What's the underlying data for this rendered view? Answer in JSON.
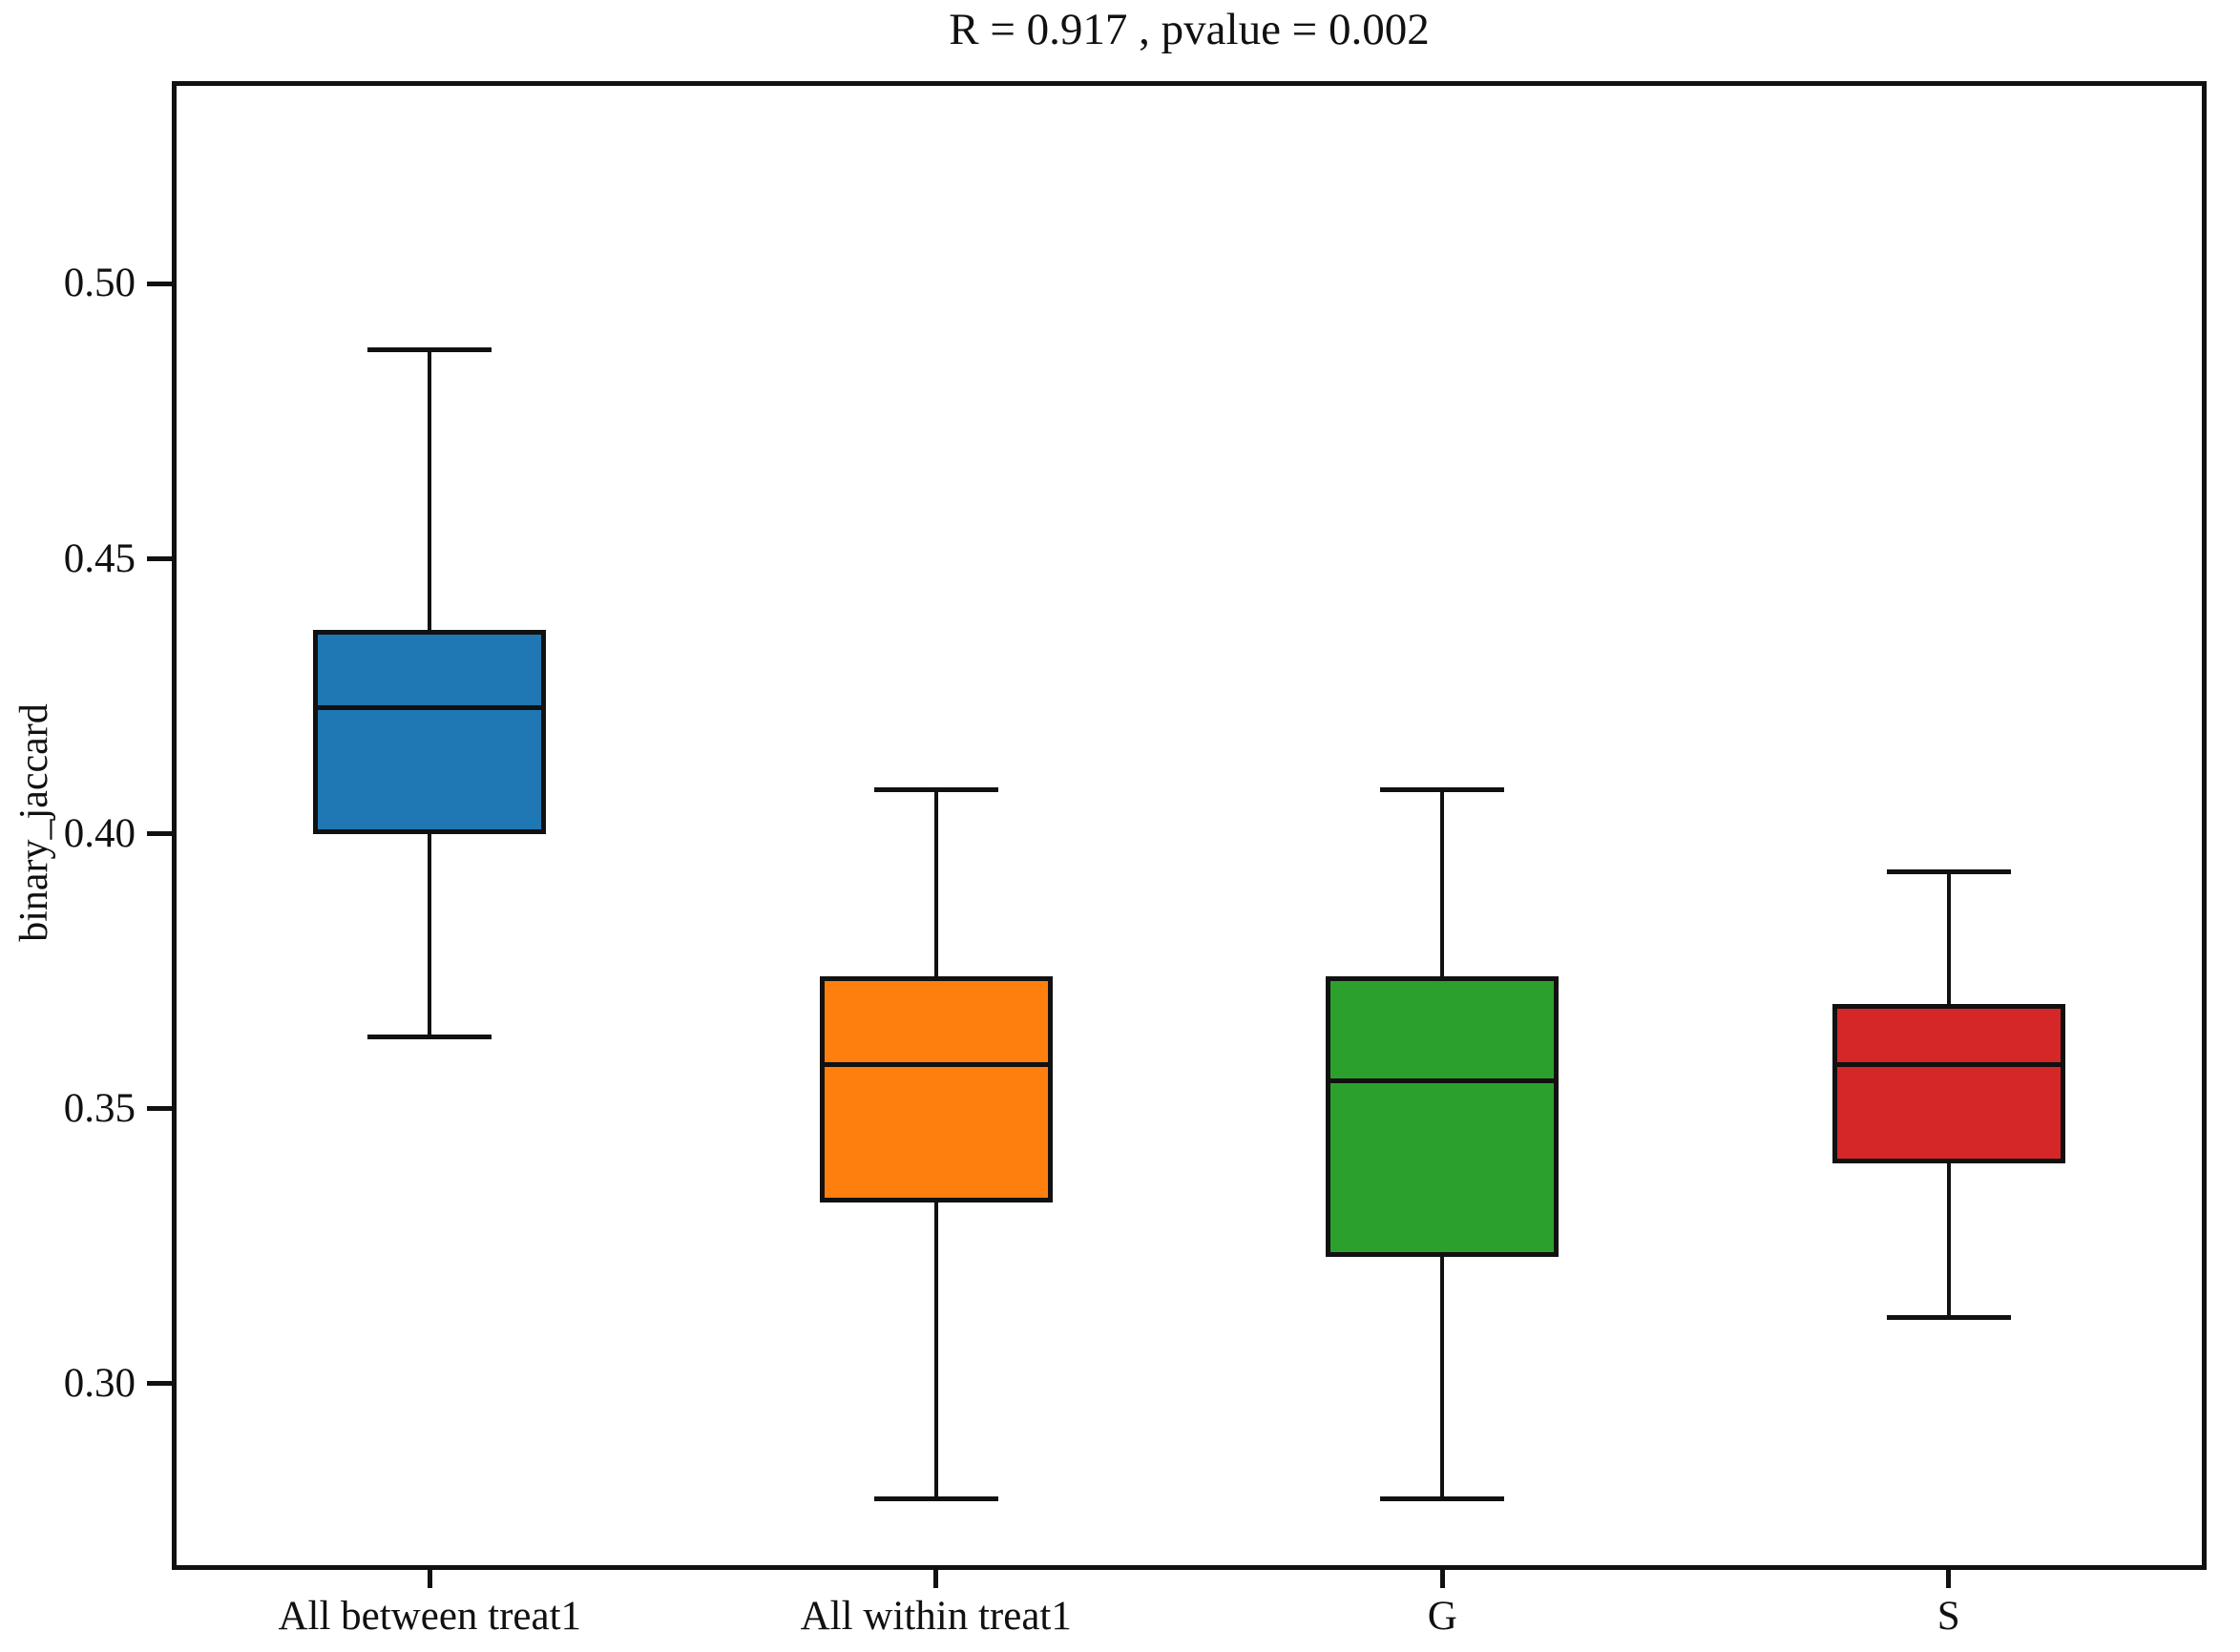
{
  "figure": {
    "title": "R = 0.917 , pvalue = 0.002"
  },
  "chart_data": {
    "type": "boxplot",
    "title": "R = 0.917 , pvalue = 0.002",
    "xlabel": "",
    "ylabel": "binary_jaccard",
    "categories": [
      "All between treat1",
      "All within treat1",
      "G",
      "S"
    ],
    "ylim": [
      0.267,
      0.536
    ],
    "y_ticks": [
      {
        "label": "0.50",
        "value": 0.5
      },
      {
        "label": "0.45",
        "value": 0.45
      },
      {
        "label": "0.40",
        "value": 0.4
      },
      {
        "label": "0.35",
        "value": 0.35
      },
      {
        "label": "0.30",
        "value": 0.3
      }
    ],
    "grid": false,
    "legend": "none",
    "line_color": "#111111",
    "series": [
      {
        "name": "All between treat1",
        "color": "#1f77b4",
        "whisker_low": 0.363,
        "q1": 0.4,
        "median": 0.423,
        "q3": 0.437,
        "whisker_high": 0.488
      },
      {
        "name": "All within treat1",
        "color": "#ff7f0e",
        "whisker_low": 0.279,
        "q1": 0.333,
        "median": 0.358,
        "q3": 0.374,
        "whisker_high": 0.408
      },
      {
        "name": "G",
        "color": "#2ca02c",
        "whisker_low": 0.279,
        "q1": 0.323,
        "median": 0.355,
        "q3": 0.374,
        "whisker_high": 0.408
      },
      {
        "name": "S",
        "color": "#d62728",
        "whisker_low": 0.312,
        "q1": 0.34,
        "median": 0.358,
        "q3": 0.369,
        "whisker_high": 0.393
      }
    ]
  }
}
